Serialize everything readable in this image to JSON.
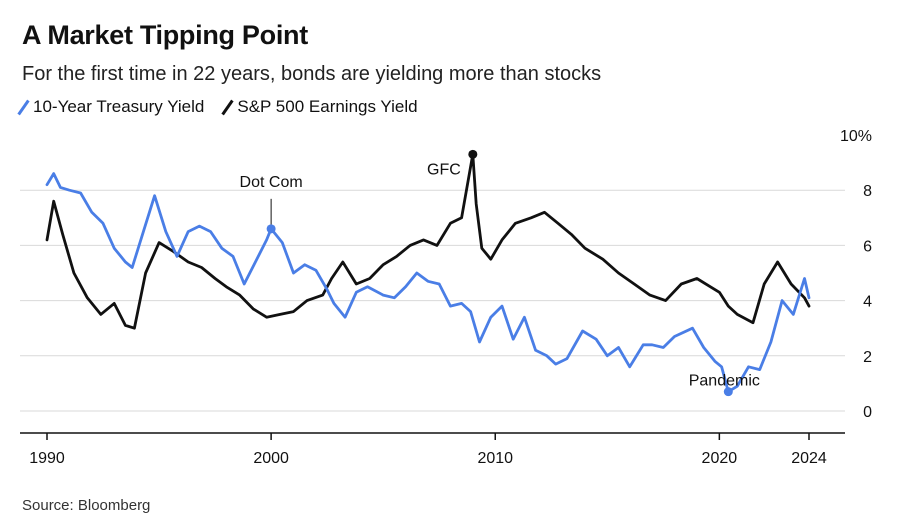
{
  "colors": {
    "treasury": "#4a7ee6",
    "earnings": "#111111",
    "grid": "#d9d9d9",
    "axis": "#111111"
  },
  "chart_data": {
    "type": "line",
    "title": "A Market Tipping Point",
    "subtitle": "For the first time in 22 years, bonds are yielding more than stocks",
    "source": "Source: Bloomberg",
    "ylim": [
      0,
      10
    ],
    "yticks": [
      0,
      2,
      4,
      6,
      8,
      10
    ],
    "ytick_labels": [
      "0",
      "2",
      "4",
      "6",
      "8",
      "10%"
    ],
    "xlim": [
      1990,
      2024
    ],
    "xticks": [
      1990,
      2000,
      2010,
      2020,
      2024
    ],
    "xtick_labels": [
      "1990",
      "2000",
      "2010",
      "2020",
      "2024"
    ],
    "grid": true,
    "legend_position": "top-left",
    "series": [
      {
        "name": "10-Year Treasury Yield",
        "color": "#4a7ee6",
        "x": [
          1990,
          1990.3,
          1990.6,
          1991,
          1991.5,
          1992,
          1992.5,
          1993,
          1993.5,
          1993.8,
          1994.3,
          1994.8,
          1995.3,
          1995.8,
          1996.3,
          1996.8,
          1997.3,
          1997.8,
          1998.3,
          1998.8,
          1999.3,
          1999.8,
          2000,
          2000.5,
          2001,
          2001.5,
          2002,
          2002.5,
          2002.8,
          2003.3,
          2003.8,
          2004.3,
          2005,
          2005.5,
          2006,
          2006.5,
          2007,
          2007.5,
          2008,
          2008.5,
          2008.9,
          2009.3,
          2009.8,
          2010.3,
          2010.8,
          2011.3,
          2011.8,
          2012.3,
          2012.7,
          2013.2,
          2013.9,
          2014.5,
          2015,
          2015.5,
          2016,
          2016.6,
          2017,
          2017.5,
          2018,
          2018.8,
          2019.3,
          2019.8,
          2020.1,
          2020.4,
          2020.8,
          2021.3,
          2021.8,
          2022.3,
          2022.8,
          2023.3,
          2023.8,
          2024
        ],
        "values": [
          8.2,
          8.6,
          8.1,
          8.0,
          7.9,
          7.2,
          6.8,
          5.9,
          5.4,
          5.2,
          6.5,
          7.8,
          6.5,
          5.6,
          6.5,
          6.7,
          6.5,
          5.9,
          5.6,
          4.6,
          5.4,
          6.2,
          6.6,
          6.1,
          5.0,
          5.3,
          5.1,
          4.4,
          3.9,
          3.4,
          4.3,
          4.5,
          4.2,
          4.1,
          4.5,
          5.0,
          4.7,
          4.6,
          3.8,
          3.9,
          3.6,
          2.5,
          3.4,
          3.8,
          2.6,
          3.4,
          2.2,
          2.0,
          1.7,
          1.9,
          2.9,
          2.6,
          2.0,
          2.3,
          1.6,
          2.4,
          2.4,
          2.3,
          2.7,
          3.0,
          2.3,
          1.8,
          1.6,
          0.7,
          0.9,
          1.6,
          1.5,
          2.5,
          4.0,
          3.5,
          4.8,
          4.1
        ]
      },
      {
        "name": "S&P 500 Earnings Yield",
        "color": "#111111",
        "x": [
          1990,
          1990.3,
          1990.7,
          1991.2,
          1991.8,
          1992.4,
          1993,
          1993.5,
          1993.9,
          1994.4,
          1995,
          1995.6,
          1996.3,
          1996.9,
          1997.5,
          1998,
          1998.6,
          1999.2,
          1999.8,
          2000.4,
          2001,
          2001.6,
          2002.3,
          2002.7,
          2003.2,
          2003.8,
          2004.4,
          2005,
          2005.6,
          2006.2,
          2006.8,
          2007.4,
          2008,
          2008.5,
          2009,
          2009.15,
          2009.4,
          2009.8,
          2010.3,
          2010.9,
          2011.6,
          2012.2,
          2012.8,
          2013.4,
          2014,
          2014.8,
          2015.5,
          2016.2,
          2016.9,
          2017.6,
          2018.3,
          2019,
          2019.6,
          2020,
          2020.4,
          2020.8,
          2021.5,
          2022,
          2022.6,
          2023.2,
          2023.8,
          2024
        ],
        "values": [
          6.2,
          7.6,
          6.4,
          5.0,
          4.1,
          3.5,
          3.9,
          3.1,
          3.0,
          5.0,
          6.1,
          5.8,
          5.4,
          5.2,
          4.8,
          4.5,
          4.2,
          3.7,
          3.4,
          3.5,
          3.6,
          4.0,
          4.2,
          4.8,
          5.4,
          4.6,
          4.8,
          5.3,
          5.6,
          6.0,
          6.2,
          6.0,
          6.8,
          7.0,
          9.3,
          7.5,
          5.9,
          5.5,
          6.2,
          6.8,
          7.0,
          7.2,
          6.8,
          6.4,
          5.9,
          5.5,
          5.0,
          4.6,
          4.2,
          4.0,
          4.6,
          4.8,
          4.5,
          4.3,
          3.8,
          3.5,
          3.2,
          4.6,
          5.4,
          4.6,
          4.1,
          3.8
        ]
      }
    ],
    "annotations": [
      {
        "label": "Dot Com",
        "x": 2000,
        "y": 6.6,
        "series": 0
      },
      {
        "label": "GFC",
        "x": 2009,
        "y": 9.3,
        "series": 1
      },
      {
        "label": "Pandemic",
        "x": 2020.4,
        "y": 0.7,
        "series": 0
      }
    ]
  }
}
